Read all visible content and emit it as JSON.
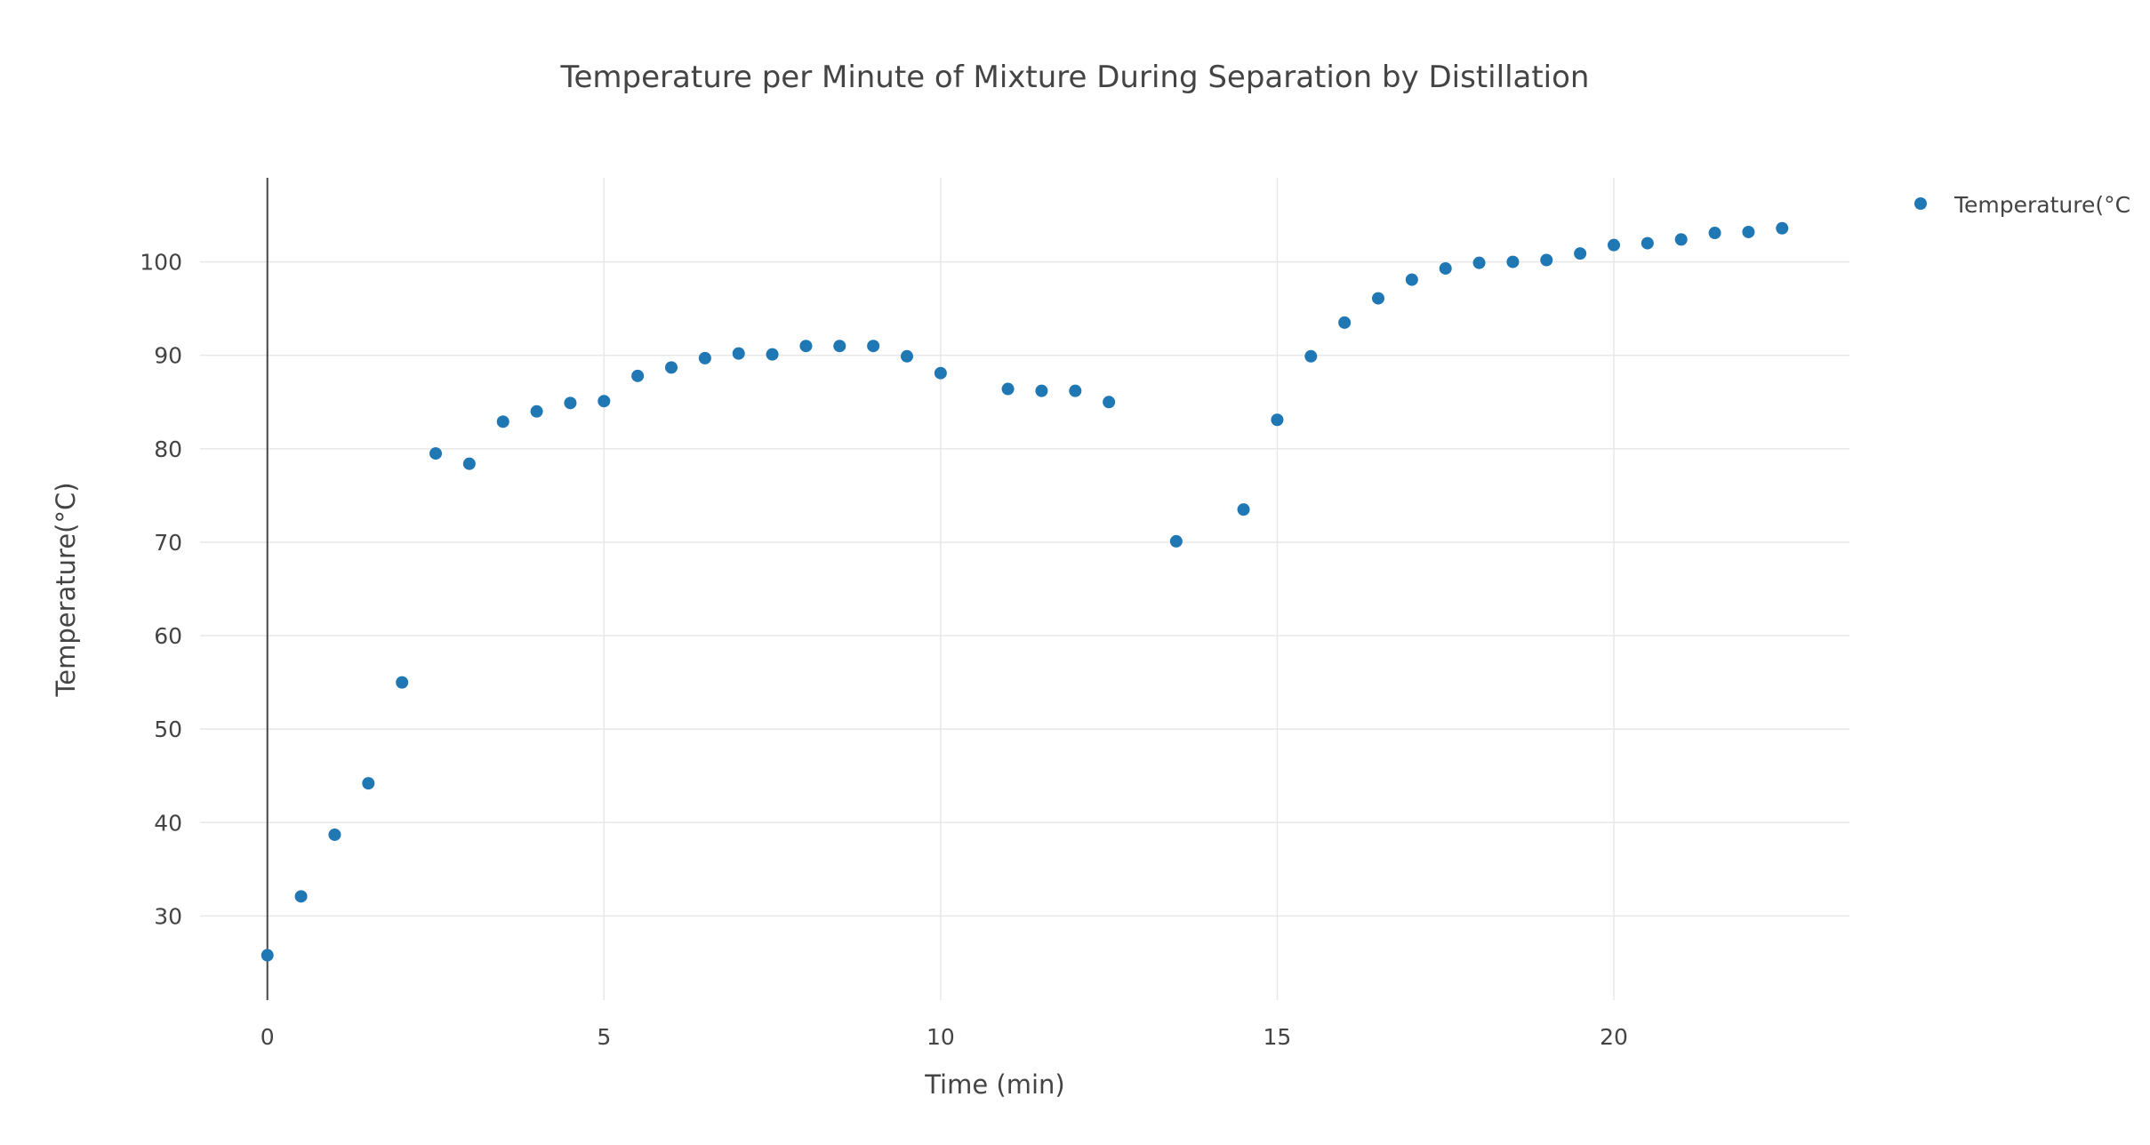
{
  "chart_data": {
    "type": "scatter",
    "title": "Temperature per Minute of Mixture During Separation by Distillation",
    "xlabel": "Time (min)",
    "ylabel": "Temperature(°C)",
    "xlim": [
      -1,
      23.5
    ],
    "ylim": [
      21,
      109
    ],
    "xticks": [
      0,
      5,
      10,
      15,
      20
    ],
    "yticks": [
      30,
      40,
      50,
      60,
      70,
      80,
      90,
      100
    ],
    "grid": true,
    "legend_position": "top-right",
    "series": [
      {
        "name": "Temperature(°C",
        "color": "#1f77b4",
        "x": [
          0,
          0.5,
          1,
          1.5,
          2,
          2.5,
          3,
          3.5,
          4,
          4.5,
          5,
          5.5,
          6,
          6.5,
          7,
          7.5,
          8,
          8.5,
          9,
          9.5,
          10,
          11,
          11.5,
          12,
          12.5,
          13.5,
          14.5,
          15,
          15.5,
          16,
          16.5,
          17,
          17.5,
          18,
          18.5,
          19,
          19.5,
          20,
          20.5,
          21,
          21.5,
          22,
          22.5
        ],
        "y": [
          25.8,
          32.1,
          38.7,
          44.2,
          55.0,
          79.5,
          78.4,
          82.9,
          84.0,
          84.9,
          85.1,
          87.8,
          88.7,
          89.7,
          90.2,
          90.1,
          91.0,
          91.0,
          91.0,
          89.9,
          88.1,
          86.4,
          86.2,
          86.2,
          85.0,
          70.1,
          73.5,
          83.1,
          89.9,
          93.5,
          96.1,
          98.1,
          99.3,
          99.9,
          100.0,
          100.2,
          100.9,
          101.8,
          102.0,
          102.4,
          103.1,
          103.2,
          103.6
        ]
      }
    ]
  }
}
